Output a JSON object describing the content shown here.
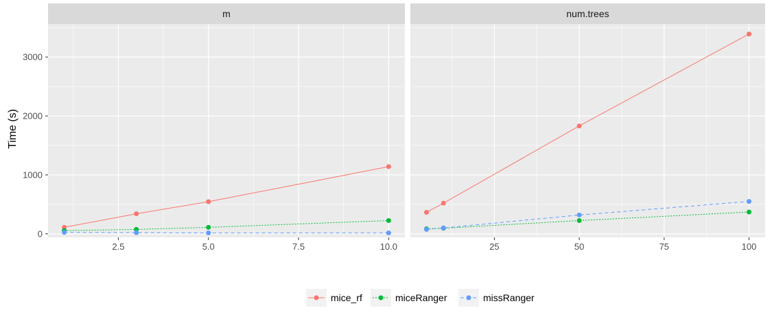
{
  "chart_data": {
    "type": "line",
    "ylabel": "Time (s)",
    "xlabel": "",
    "y_ticks": [
      0,
      1000,
      2000,
      3000
    ],
    "ylim": [
      -60,
      3560
    ],
    "grid": true,
    "legend_position": "bottom",
    "colors": {
      "mice_rf": "#F8766D",
      "miceRanger": "#00BA38",
      "missRanger": "#619CFF"
    },
    "panels": [
      {
        "strip": "m",
        "x_ticks": [
          "2.5",
          "5.0",
          "7.5",
          "10.0"
        ],
        "x_tick_values": [
          2.5,
          5.0,
          7.5,
          10.0
        ],
        "xlim": [
          0.55,
          10.45
        ],
        "series": [
          {
            "name": "mice_rf",
            "x": [
              1,
              3,
              5,
              10
            ],
            "values": [
              110,
              340,
              545,
              1140
            ]
          },
          {
            "name": "miceRanger",
            "x": [
              1,
              3,
              5,
              10
            ],
            "values": [
              55,
              75,
              110,
              225
            ]
          },
          {
            "name": "missRanger",
            "x": [
              1,
              3,
              5,
              10
            ],
            "values": [
              25,
              20,
              15,
              15
            ]
          }
        ]
      },
      {
        "strip": "num.trees",
        "x_ticks": [
          "25",
          "50",
          "75",
          "100"
        ],
        "x_tick_values": [
          25,
          50,
          75,
          100
        ],
        "xlim": [
          0.25,
          104.75
        ],
        "series": [
          {
            "name": "mice_rf",
            "x": [
              5,
              10,
              50,
              100
            ],
            "values": [
              365,
              520,
              1830,
              3390
            ]
          },
          {
            "name": "miceRanger",
            "x": [
              5,
              10,
              50,
              100
            ],
            "values": [
              85,
              95,
              225,
              370
            ]
          },
          {
            "name": "missRanger",
            "x": [
              5,
              10,
              50,
              100
            ],
            "values": [
              75,
              100,
              320,
              550
            ]
          }
        ]
      }
    ],
    "legend": [
      {
        "name": "mice_rf",
        "label": "mice_rf",
        "dash": "solid"
      },
      {
        "name": "miceRanger",
        "label": "miceRanger",
        "dash": "dotted"
      },
      {
        "name": "missRanger",
        "label": "missRanger",
        "dash": "dashed"
      }
    ]
  }
}
